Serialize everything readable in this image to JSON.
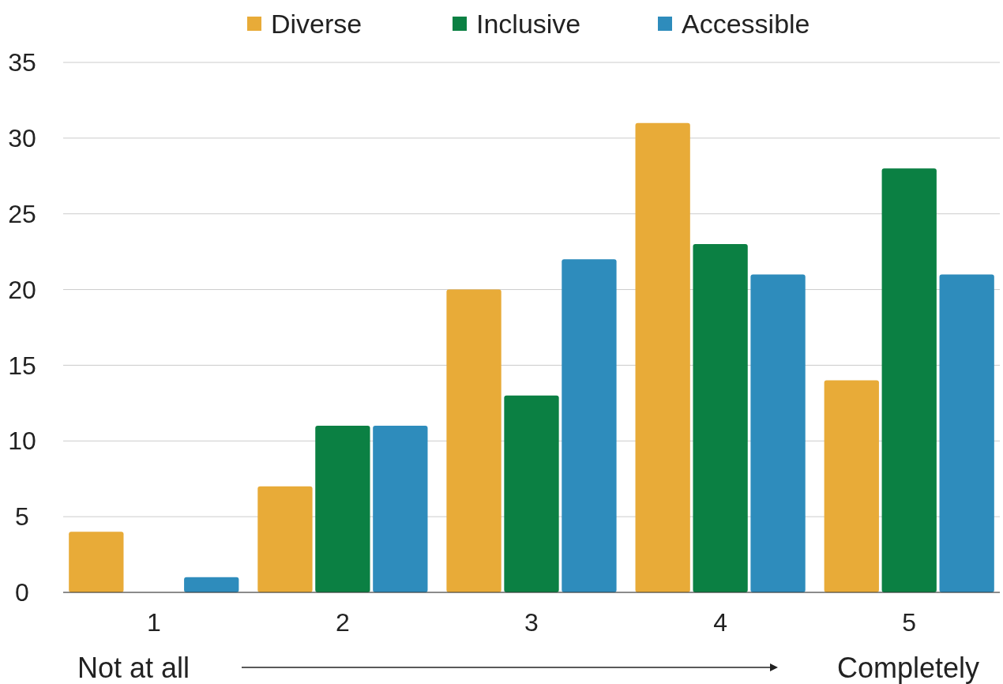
{
  "chart_data": {
    "type": "bar",
    "categories": [
      "1",
      "2",
      "3",
      "4",
      "5"
    ],
    "series": [
      {
        "name": "Diverse",
        "color": "#e8ab38",
        "values": [
          4,
          7,
          20,
          31,
          14
        ]
      },
      {
        "name": "Inclusive",
        "color": "#0b8043",
        "values": [
          0,
          11,
          13,
          23,
          28
        ]
      },
      {
        "name": "Accessible",
        "color": "#2e8cbc",
        "values": [
          1,
          11,
          22,
          21,
          21
        ]
      }
    ],
    "ylim": [
      0,
      35
    ],
    "yticks": [
      0,
      5,
      10,
      15,
      20,
      25,
      30,
      35
    ],
    "grid": "y",
    "legend": "top",
    "annotations": [
      "Not at all",
      "Completely"
    ]
  }
}
